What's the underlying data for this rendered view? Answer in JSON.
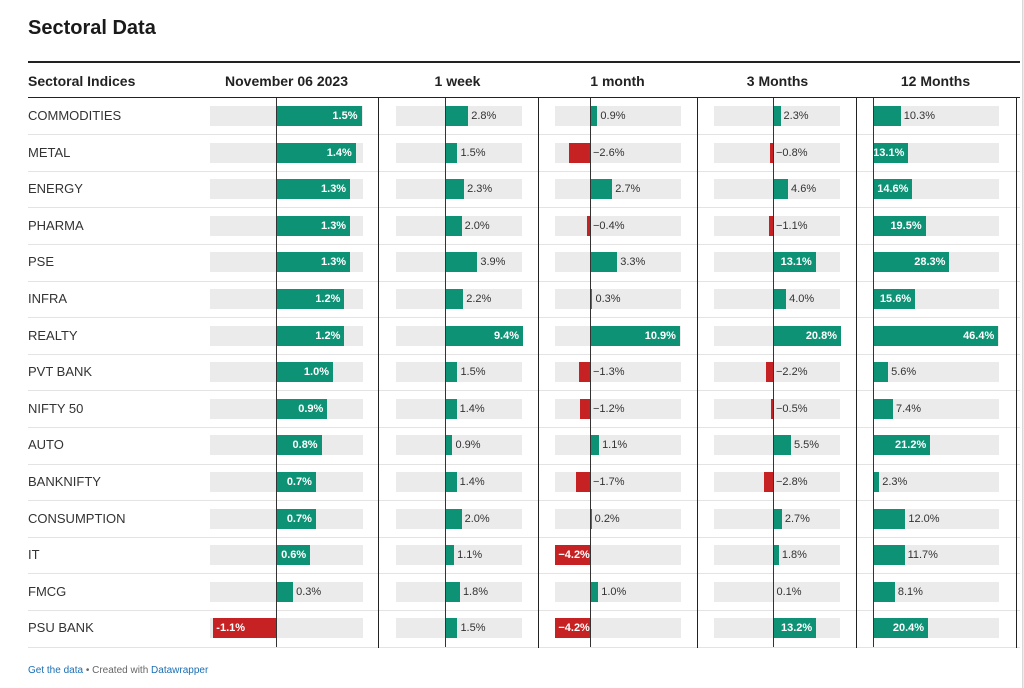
{
  "title": "Sectoral Data",
  "header": {
    "label_col": "Sectoral Indices",
    "columns": [
      "November 06 2023",
      "1 week",
      "1 month",
      "3 Months",
      "12 Months"
    ]
  },
  "colors": {
    "positive": "#0e9275",
    "negative": "#c72223",
    "track": "#ebebeb"
  },
  "chart_data": {
    "type": "bar",
    "categories": [
      "COMMODITIES",
      "METAL",
      "ENERGY",
      "PHARMA",
      "PSE",
      "INFRA",
      "REALTY",
      "PVT BANK",
      "NIFTY 50",
      "AUTO",
      "BANKNIFTY",
      "CONSUMPTION",
      "IT",
      "FMCG",
      "PSU BANK"
    ],
    "series": [
      {
        "name": "November 06 2023",
        "values": [
          1.5,
          1.4,
          1.3,
          1.3,
          1.3,
          1.2,
          1.2,
          1.0,
          0.9,
          0.8,
          0.7,
          0.7,
          0.6,
          0.3,
          -1.1
        ],
        "labels": [
          "1.5%",
          "1.4%",
          "1.3%",
          "1.3%",
          "1.3%",
          "1.2%",
          "1.2%",
          "1.0%",
          "0.9%",
          "0.8%",
          "0.7%",
          "0.7%",
          "0.6%",
          "0.3%",
          "-1.1%"
        ]
      },
      {
        "name": "1 week",
        "values": [
          2.8,
          1.5,
          2.3,
          2.0,
          3.9,
          2.2,
          9.4,
          1.5,
          1.4,
          0.9,
          1.4,
          2.0,
          1.1,
          1.8,
          1.5
        ],
        "labels": [
          "2.8%",
          "1.5%",
          "2.3%",
          "2.0%",
          "3.9%",
          "2.2%",
          "9.4%",
          "1.5%",
          "1.4%",
          "0.9%",
          "1.4%",
          "2.0%",
          "1.1%",
          "1.8%",
          "1.5%"
        ]
      },
      {
        "name": "1 month",
        "values": [
          0.9,
          -2.6,
          2.7,
          -0.4,
          3.3,
          0.3,
          10.9,
          -1.3,
          -1.2,
          1.1,
          -1.7,
          0.2,
          -4.2,
          1.0,
          -4.2
        ],
        "labels": [
          "0.9%",
          "−2.6%",
          "2.7%",
          "−0.4%",
          "3.3%",
          "0.3%",
          "10.9%",
          "−1.3%",
          "−1.2%",
          "1.1%",
          "−1.7%",
          "0.2%",
          "−4.2%",
          "1.0%",
          "−4.2%"
        ]
      },
      {
        "name": "3 Months",
        "values": [
          2.3,
          -0.8,
          4.6,
          -1.1,
          13.1,
          4.0,
          20.8,
          -2.2,
          -0.5,
          5.5,
          -2.8,
          2.7,
          1.8,
          0.1,
          13.2
        ],
        "labels": [
          "2.3%",
          "−0.8%",
          "4.6%",
          "−1.1%",
          "13.1%",
          "4.0%",
          "20.8%",
          "−2.2%",
          "−0.5%",
          "5.5%",
          "−2.8%",
          "2.7%",
          "1.8%",
          "0.1%",
          "13.2%"
        ]
      },
      {
        "name": "12 Months",
        "values": [
          10.3,
          13.1,
          14.6,
          19.5,
          28.3,
          15.6,
          46.4,
          5.6,
          7.4,
          21.2,
          2.3,
          12.0,
          11.7,
          8.1,
          20.4
        ],
        "labels": [
          "10.3%",
          "13.1%",
          "14.6%",
          "19.5%",
          "28.3%",
          "15.6%",
          "46.4%",
          "5.6%",
          "7.4%",
          "21.2%",
          "2.3%",
          "12.0%",
          "11.7%",
          "8.1%",
          "20.4%"
        ]
      }
    ]
  },
  "footer": {
    "link": "Get the data",
    "separator": "•",
    "created": "Created with",
    "tool": "Datawrapper"
  }
}
